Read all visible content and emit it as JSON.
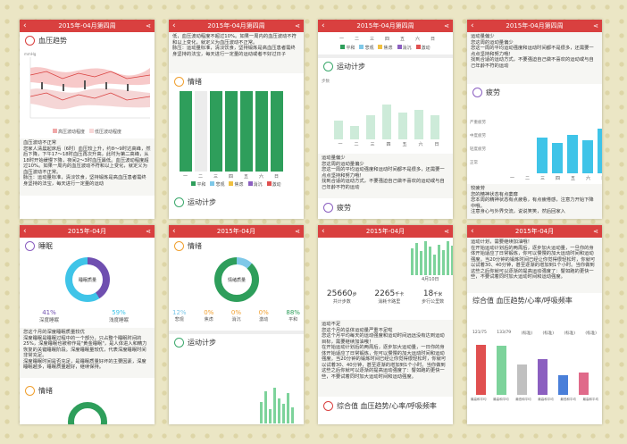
{
  "title_week": "2015年-04月第四周",
  "title_month": "2015年-04月",
  "back_icon": "chevron-left-icon",
  "share_icon": "share-icon",
  "p1": {
    "section": "血压趋势",
    "y_axis": "mmHg",
    "legend": [
      "高压波动程度",
      "低压波动程度"
    ],
    "text": "血压波动不正常\n您家人清晨起床后（6时）血压较上升，约8～9时达高峰，然后下降，下午17～18时血压再次升高，此时为第二高峰，从18时开始缓慢下降，夜间2～3时血压最低。血压波动程度超过10%。如果一周内的血压波动不符和以上变化，就定义为血压波动不正常。\n脉压：运动量标准，清淡饮食，坚持锻炼是高血压患者需终身坚持的法宝，每天进行一定量的运动"
  },
  "p2": {
    "text_top": "低，血压波动程度不超过10%。如果一周内的血压波动不符和以上变化，就定义为血压波动不正常。\n脉压：运动量标准，清淡饮食，坚持锻炼是高血压患者需终身坚持的法宝，每天进行一定量的运动或者不好过日子",
    "section1": "情绪",
    "section2": "运动计步",
    "days": [
      "一",
      "二",
      "三",
      "四",
      "五",
      "六",
      "日"
    ],
    "legend": [
      "平和",
      "悲观",
      "焦虑",
      "消沉",
      "激动"
    ],
    "mood_colors": [
      "#2e9e5b",
      "#ececec",
      "#2e9e5b",
      "#2e9e5b",
      "#2e9e5b",
      "#2e9e5b",
      "#2e9e5b"
    ]
  },
  "p3": {
    "legend": [
      "平和",
      "悲观",
      "焦虑",
      "消沉",
      "激动"
    ],
    "days": [
      "一",
      "二",
      "三",
      "四",
      "五",
      "六",
      "日"
    ],
    "section1": "运动计步",
    "y_axis": "步数",
    "section2": "疲劳",
    "text": "运动量偏少\n您这周的运动量偏少\n您这一周的平均运动强度和运动时间都不是很多，还需要一点点坚持和努力哦！\n找到合适的运动方式，不要强迫自己做不喜欢的运动或与自己年龄不符的运动"
  },
  "p4": {
    "text_top": "运动量偏少\n您这周的运动量偏少\n您这一周的平均运动强度和运动时间都不是很多，还需要一点点坚持和努力哦！\n找到合适的运动方式，不要强迫自己做不喜欢的运动或与自己年龄不符的运动",
    "section": "疲劳",
    "levels": [
      "严重疲劳",
      "中度疲劳",
      "轻度疲劳",
      "正常"
    ],
    "days": [
      "一",
      "二",
      "三",
      "四",
      "五",
      "六",
      "日"
    ],
    "text_bottom": "较疲劳\n您的精神状态有点萎靡\n您本周的精神状态有点疲惫，有点疲倦感，注意力开始下降中哦。\n注意身心与外界交流，说说笑笑，然后回家入"
  },
  "p5": {
    "section": "睡眠",
    "ring_label": "睡眠质量",
    "stats": [
      {
        "value": "41%",
        "label": "深度睡眠"
      },
      {
        "value": "59%",
        "label": "浅度睡眠"
      }
    ],
    "text": "您这个月的深度睡眠质量较优\n深度睡眠是睡眠过程中的一个部分，只占整个睡眠时间的25%，深度睡眠也被称作是\"黄金睡眠\"，是人体进入和精力恢复的关键睡眠阶段。深度睡眠量较优，代表深度睡眠时间非常充足。\n深度睡眠时间是否充足，是睡眠质量好坏的主要因素，深度睡眠越多，睡眠质量越好，继续保持。",
    "section2": "情绪"
  },
  "p6": {
    "section": "情绪",
    "ring_label": "情绪质量",
    "stats": [
      {
        "value": "12%",
        "label": "悲观"
      },
      {
        "value": "0%",
        "label": "焦虑"
      },
      {
        "value": "0%",
        "label": "消沉"
      },
      {
        "value": "0%",
        "label": "激动"
      },
      {
        "value": "88%",
        "label": "平和"
      }
    ],
    "section2": "运动计步"
  },
  "p7": {
    "date": "4月10日",
    "stats": [
      {
        "value": "25660",
        "unit": "步",
        "label": "共计步数"
      },
      {
        "value": "2265",
        "unit": "千卡",
        "label": "消耗卡路里"
      },
      {
        "value": "18",
        "unit": "千米",
        "label": "步行公里数"
      }
    ],
    "text": "运动不足\n您这个月的总体运动量严重不足啦\n您这个月平均每天的运动强度和运动时间远远没有达到运动目标，需要继续加油哦！\n在开始运动计划后的两周后，逐步加大运动量，一日你的身体开始适应了日常锻炼，你可以慢慢的加大运动时间和运动强度。当20分钟的锻炼时间已经让你觉得很轻松时，你就可以试着30、40分钟，甚至逐渐的增加到1个小时。当你做到这些之后你就可以逐渐的提高运动强度了：譬如跑的更快一些，不要试着同时加大运动时间和运动强度。",
    "section": "综合值 血压趋势/心率/呼吸频率"
  },
  "p8": {
    "text_top": "运动计划，需要继续加油哦！\n在开始运动计划后的两周后，逐步加大运动量，一旦你的身体开始适应了日常锻炼，你可以慢慢的加大运动时间和运动强度。当20分钟的锻炼时间已经让你觉得很轻松时，你就可以试着30、40分钟，甚至逐渐的增加到1个小时。当你做到这些之后你就可以逐渐的提高运动强度了：譬如跑的更快一些，不要试着同时加大运动时间和运动强度。",
    "section": "综合值 血压趋势/心率/呼吸频率",
    "bar_labels": [
      "121/75",
      "133/79",
      "(标准)",
      "(标准)",
      "(标准)",
      "(标准)"
    ],
    "x_labels": [
      "最高和平均",
      "最高和平均",
      "最低和平均",
      "最高和平均",
      "最低和平均",
      "最高和平均"
    ]
  }
}
